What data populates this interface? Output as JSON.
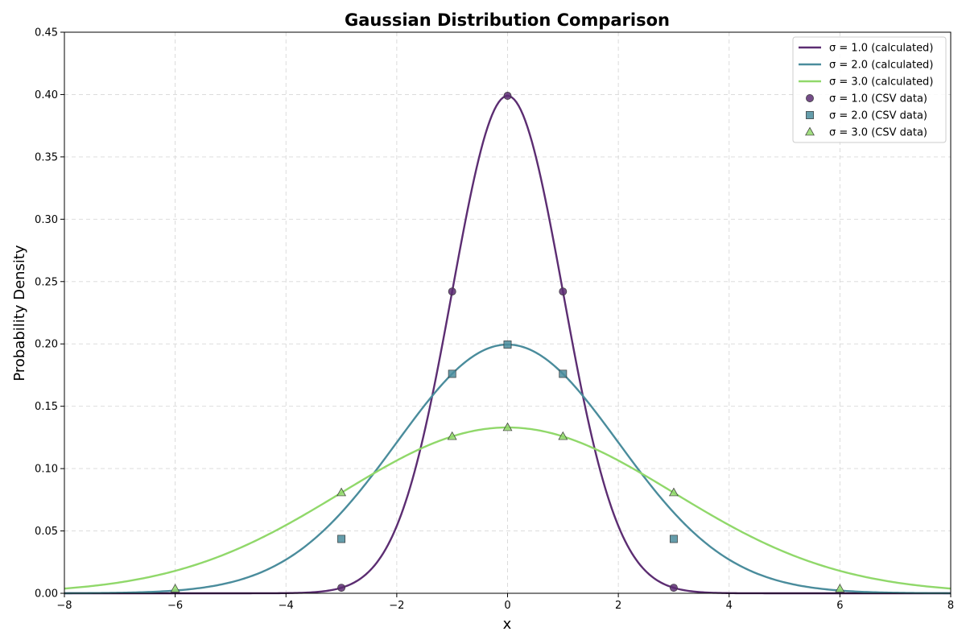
{
  "chart_data": {
    "type": "line",
    "title": "Gaussian Distribution Comparison",
    "xlabel": "x",
    "ylabel": "Probability Density",
    "xlim": [
      -8,
      8
    ],
    "ylim": [
      0,
      0.45
    ],
    "xticks": [
      -8,
      -6,
      -4,
      -2,
      0,
      2,
      4,
      6,
      8
    ],
    "xtick_labels": [
      "−8",
      "−6",
      "−4",
      "−2",
      "0",
      "2",
      "4",
      "6",
      "8"
    ],
    "yticks": [
      0,
      0.05,
      0.1,
      0.15,
      0.2,
      0.25,
      0.3,
      0.35,
      0.4,
      0.45
    ],
    "ytick_labels": [
      "0.00",
      "0.05",
      "0.10",
      "0.15",
      "0.20",
      "0.25",
      "0.30",
      "0.35",
      "0.40",
      "0.45"
    ],
    "grid": true,
    "legend_position": "top-right",
    "series": [
      {
        "name": "σ = 1.0 (calculated)",
        "kind": "line",
        "sigma": 1.0,
        "mean": 0,
        "scale": 1.0,
        "color": "#5c2d72"
      },
      {
        "name": "σ = 2.0 (calculated)",
        "kind": "line",
        "sigma": 2.0,
        "mean": 0,
        "scale": 1.0,
        "color": "#4a8c9c"
      },
      {
        "name": "σ = 3.0 (calculated)",
        "kind": "line",
        "sigma": 3.0,
        "mean": 0,
        "scale": 1.0,
        "color": "#90d86a"
      },
      {
        "name": "σ = 1.0 (CSV data)",
        "kind": "scatter",
        "marker": "circle",
        "color": "#5c2d72",
        "x": [
          -3,
          -1,
          0,
          1,
          3
        ],
        "y": [
          0.0044,
          0.242,
          0.399,
          0.242,
          0.0044
        ]
      },
      {
        "name": "σ = 2.0 (CSV data)",
        "kind": "scatter",
        "marker": "square",
        "color": "#4a8c9c",
        "x": [
          -3,
          -1,
          0,
          1,
          3
        ],
        "y": [
          0.0436,
          0.176,
          0.1995,
          0.176,
          0.0436
        ]
      },
      {
        "name": "σ = 3.0 (CSV data)",
        "kind": "scatter",
        "marker": "triangle",
        "color": "#90d86a",
        "x": [
          -6,
          -3,
          -1,
          0,
          1,
          3,
          6
        ],
        "y": [
          0.0036,
          0.0807,
          0.1258,
          0.133,
          0.1258,
          0.0807,
          0.0036
        ]
      }
    ]
  }
}
